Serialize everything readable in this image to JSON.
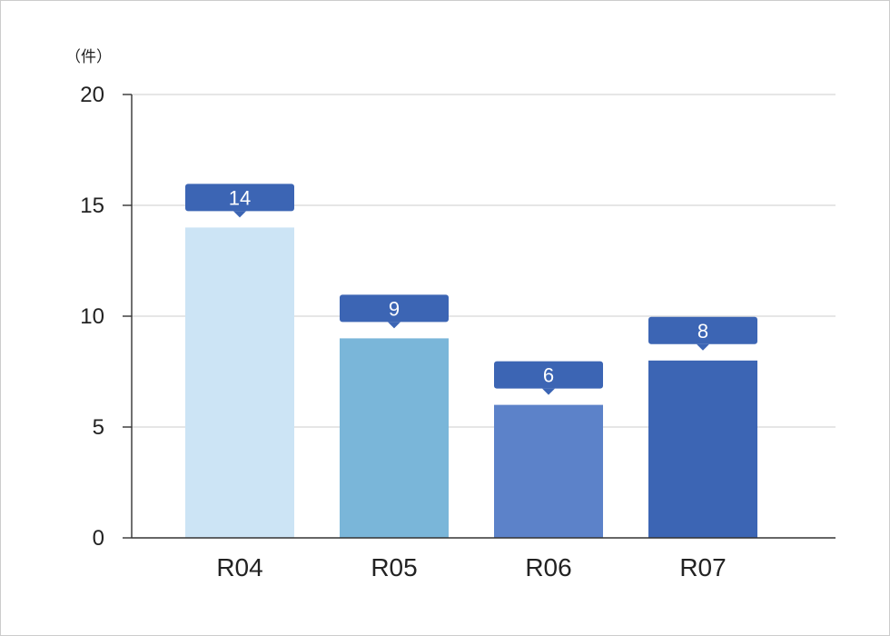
{
  "chart_data": {
    "type": "bar",
    "title": "",
    "xlabel": "",
    "ylabel": "",
    "unit_label": "（件）",
    "categories": [
      "R04",
      "R05",
      "R06",
      "R07"
    ],
    "values": [
      14,
      9,
      6,
      8
    ],
    "data_labels": [
      "14",
      "9",
      "6",
      "8"
    ],
    "ylim": [
      0,
      20
    ],
    "yticks": [
      0,
      5,
      10,
      15,
      20
    ],
    "ytick_labels": [
      "0",
      "5",
      "10",
      "15",
      "20"
    ],
    "grid": true,
    "legend": "none",
    "bar_colors": [
      "#cce4f5",
      "#7ab6d9",
      "#5c82c9",
      "#3c65b4"
    ],
    "label_color": "#3c65b4",
    "grid_color": "#d6d6d6",
    "axis_color": "#333333"
  }
}
